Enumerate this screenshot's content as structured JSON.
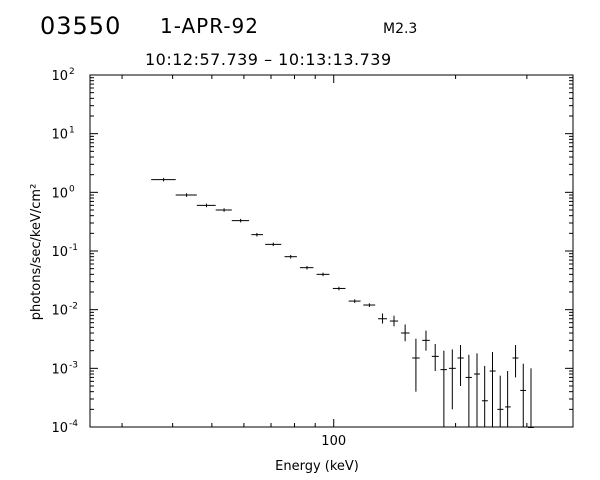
{
  "header": {
    "event_id": "03550",
    "date": "1-APR-92",
    "goes_class": "M2.3",
    "time_range": "10:12:57.739  –  10:13:13.739"
  },
  "chart_data": {
    "type": "scatter",
    "title": "",
    "xlabel": "Energy (keV)",
    "ylabel": "photons/sec/keV/cm²",
    "xscale": "log",
    "yscale": "log",
    "xlim": [
      25,
      390
    ],
    "ylim": [
      0.0001,
      100
    ],
    "x_tick_labels": [
      {
        "value": 100,
        "label": "100"
      }
    ],
    "y_tick_labels": [
      {
        "value": 100,
        "base": "10",
        "exp": "2"
      },
      {
        "value": 10,
        "base": "10",
        "exp": "1"
      },
      {
        "value": 1,
        "base": "10",
        "exp": "0"
      },
      {
        "value": 0.1,
        "base": "10",
        "exp": "-1"
      },
      {
        "value": 0.01,
        "base": "10",
        "exp": "-2"
      },
      {
        "value": 0.001,
        "base": "10",
        "exp": "-3"
      },
      {
        "value": 0.0001,
        "base": "10",
        "exp": "-4"
      }
    ],
    "grid": false,
    "series": [
      {
        "points": [
          {
            "x": 38.0,
            "xlo": 35.4,
            "xhi": 40.7,
            "y": 1.65
          },
          {
            "x": 43.3,
            "xlo": 40.7,
            "xhi": 45.9,
            "y": 0.9
          },
          {
            "x": 48.5,
            "xlo": 45.9,
            "xhi": 51.1,
            "y": 0.6
          },
          {
            "x": 53.6,
            "xlo": 51.1,
            "xhi": 56.0,
            "y": 0.5
          },
          {
            "x": 58.9,
            "xlo": 56.0,
            "xhi": 61.8,
            "y": 0.33
          },
          {
            "x": 64.6,
            "xlo": 62.6,
            "xhi": 66.9,
            "y": 0.19
          },
          {
            "x": 70.9,
            "xlo": 67.7,
            "xhi": 74.2,
            "y": 0.13
          },
          {
            "x": 78.3,
            "xlo": 75.6,
            "xhi": 81.1,
            "y": 0.08
          },
          {
            "x": 85.9,
            "xlo": 82.5,
            "xhi": 89.1,
            "y": 0.052
          },
          {
            "x": 94.1,
            "xlo": 90.7,
            "xhi": 97.6,
            "y": 0.04
          },
          {
            "x": 103.0,
            "xlo": 99.5,
            "xhi": 106.9,
            "y": 0.023
          },
          {
            "x": 112.7,
            "xlo": 108.9,
            "xhi": 116.5,
            "y": 0.014
          },
          {
            "x": 122.5,
            "xlo": 118.3,
            "xhi": 126.6,
            "y": 0.012
          },
          {
            "x": 132.0,
            "xlo": 128.7,
            "xhi": 135.4,
            "y": 0.007,
            "ylo": 0.0058,
            "yhi": 0.0086
          },
          {
            "x": 140.9,
            "xlo": 137.6,
            "xhi": 144.2,
            "y": 0.0064,
            "ylo": 0.0052,
            "yhi": 0.0079
          },
          {
            "x": 150.1,
            "xlo": 146.6,
            "xhi": 154.0,
            "y": 0.004,
            "ylo": 0.0029,
            "yhi": 0.0056
          },
          {
            "x": 159.6,
            "xlo": 156.2,
            "xhi": 163.1,
            "y": 0.0015,
            "ylo": 0.0004,
            "yhi": 0.0032
          },
          {
            "x": 169.0,
            "xlo": 165.4,
            "xhi": 172.7,
            "y": 0.003,
            "ylo": 0.002,
            "yhi": 0.0044
          },
          {
            "x": 178.1,
            "xlo": 174.7,
            "xhi": 181.8,
            "y": 0.0016,
            "ylo": 0.0009,
            "yhi": 0.0026
          },
          {
            "x": 187.1,
            "xlo": 183.5,
            "xhi": 190.4,
            "y": 0.00095,
            "ylo": 0.0001,
            "yhi": 0.002
          },
          {
            "x": 196.3,
            "xlo": 192.6,
            "xhi": 200.2,
            "y": 0.001,
            "ylo": 0.0002,
            "yhi": 0.0021
          },
          {
            "x": 205.7,
            "xlo": 202.2,
            "xhi": 209.5,
            "y": 0.0015,
            "ylo": 0.0005,
            "yhi": 0.0025
          },
          {
            "x": 215.7,
            "xlo": 211.7,
            "xhi": 219.4,
            "y": 0.0007,
            "ylo": 0.0001,
            "yhi": 0.0017
          },
          {
            "x": 225.9,
            "xlo": 222.1,
            "xhi": 229.8,
            "y": 0.0008,
            "ylo": 0.0001,
            "yhi": 0.0018
          },
          {
            "x": 236.0,
            "xlo": 232.3,
            "xhi": 240.3,
            "y": 0.00028,
            "ylo": 0.0001,
            "yhi": 0.0011
          },
          {
            "x": 246.7,
            "xlo": 242.8,
            "xhi": 251.2,
            "y": 0.0009,
            "ylo": 0.0001,
            "yhi": 0.0019
          },
          {
            "x": 257.8,
            "xlo": 253.7,
            "xhi": 262.5,
            "y": 0.0002,
            "ylo": 0.0001,
            "yhi": 0.00075
          },
          {
            "x": 268.9,
            "xlo": 265.1,
            "xhi": 273.7,
            "y": 0.00022,
            "ylo": 0.0001,
            "yhi": 0.0009
          },
          {
            "x": 281.3,
            "xlo": 276.4,
            "xhi": 286.0,
            "y": 0.0015,
            "ylo": 0.0007,
            "yhi": 0.0025
          },
          {
            "x": 293.9,
            "xlo": 288.9,
            "xhi": 298.6,
            "y": 0.00042,
            "ylo": 0.0001,
            "yhi": 0.0012
          },
          {
            "x": 307.1,
            "xlo": 301.8,
            "xhi": 312.0,
            "y": 9.8e-05,
            "ylo": 0.0001,
            "yhi": 0.001
          }
        ]
      }
    ]
  }
}
